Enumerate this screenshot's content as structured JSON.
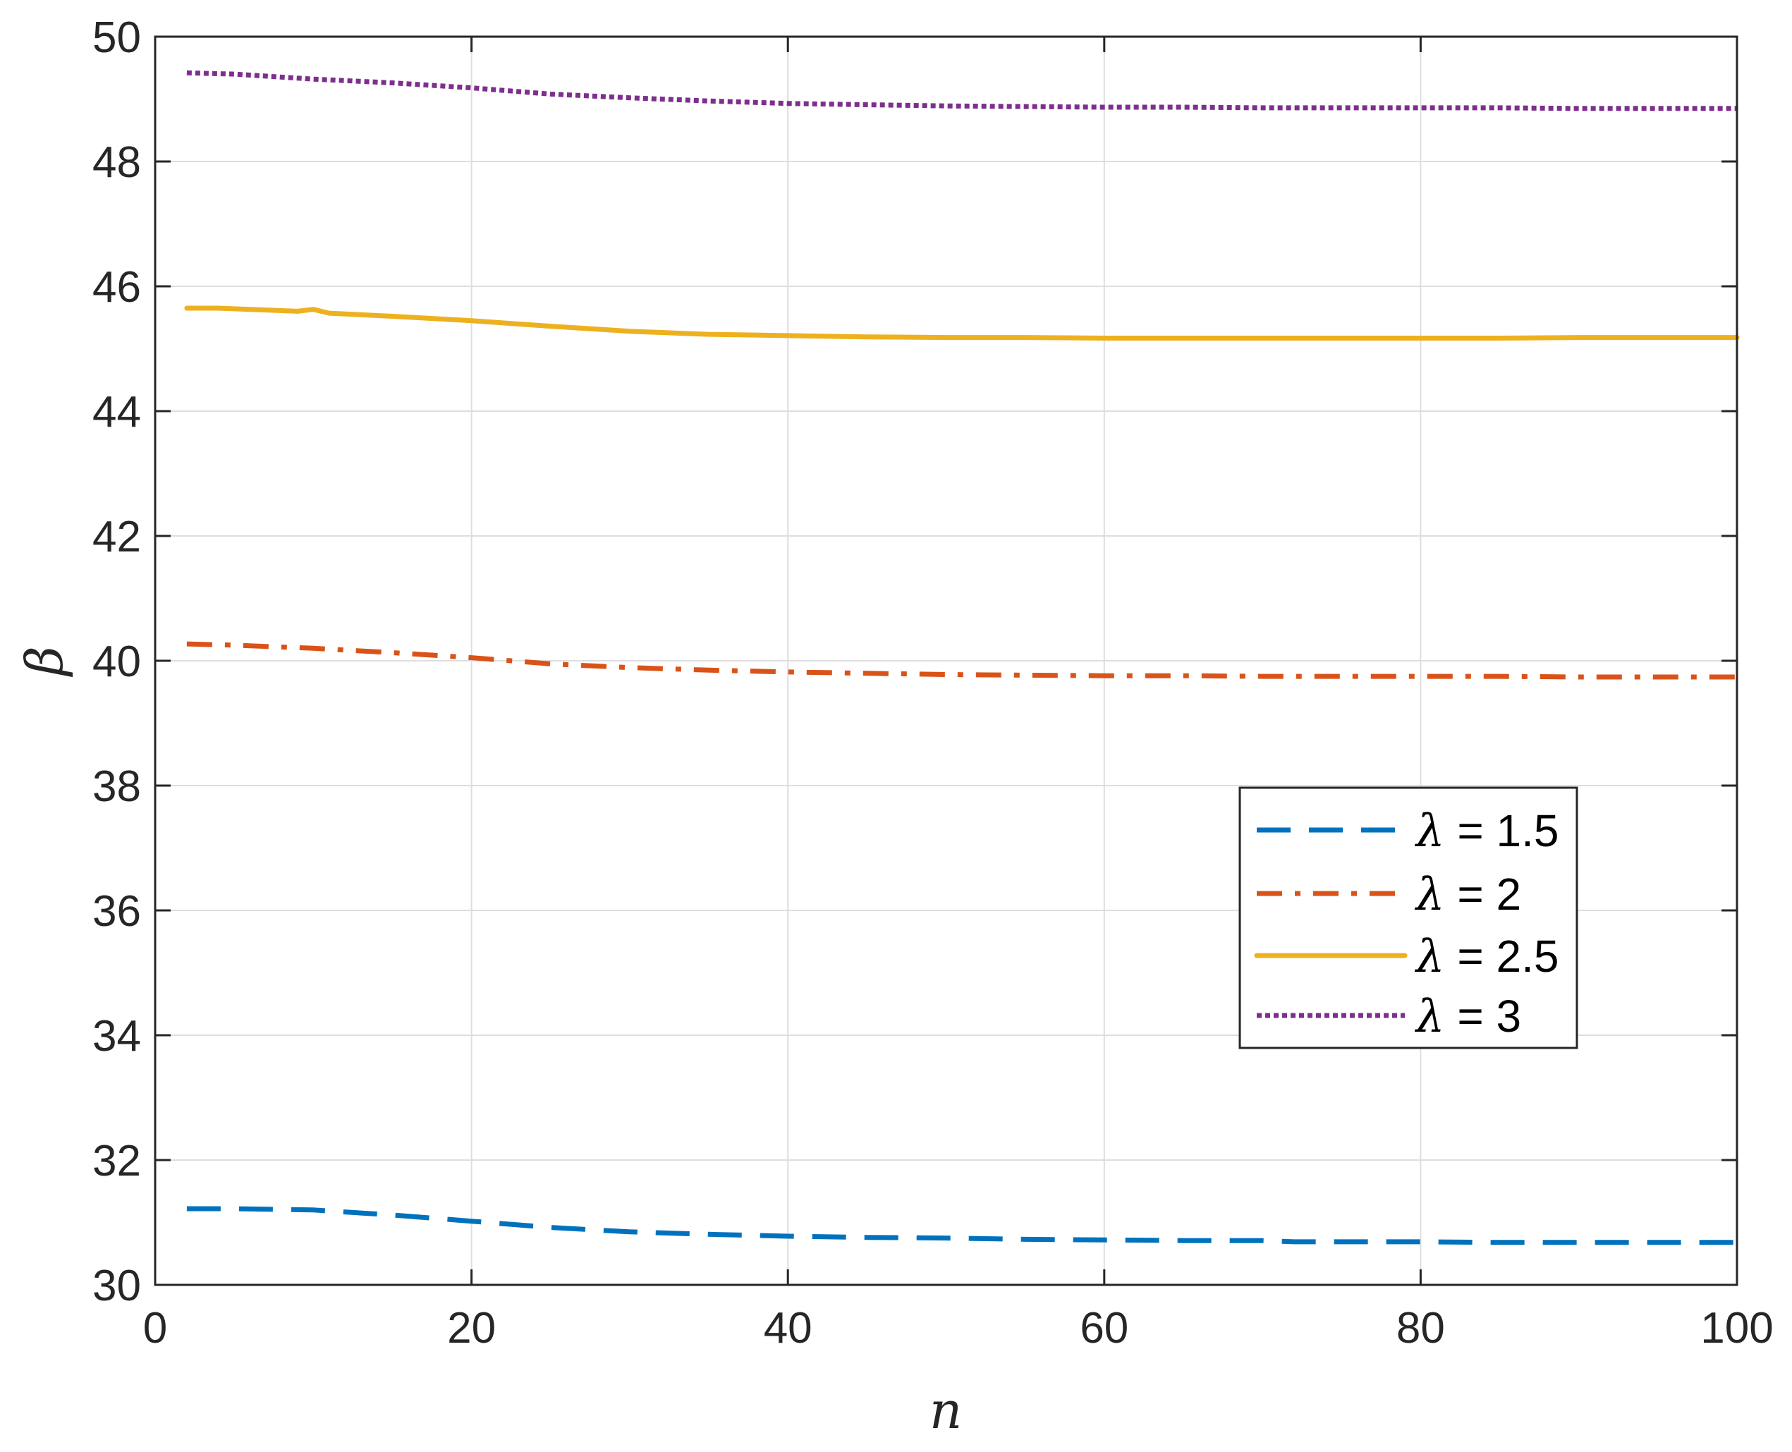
{
  "chart_data": {
    "type": "line",
    "xlabel": "n",
    "ylabel": "β",
    "xlim": [
      0,
      100
    ],
    "ylim": [
      30,
      50
    ],
    "xticks": [
      0,
      20,
      40,
      60,
      80,
      100
    ],
    "yticks": [
      30,
      32,
      34,
      36,
      38,
      40,
      42,
      44,
      46,
      48,
      50
    ],
    "grid": true,
    "legend_position": "right-middle",
    "series": [
      {
        "name": "λ = 1.5",
        "legend_symbol": "λ",
        "legend_value": " = 1.5",
        "color": "#0072BD",
        "style": "dashed",
        "x": [
          2,
          5,
          10,
          15,
          20,
          25,
          30,
          35,
          40,
          45,
          50,
          55,
          60,
          65,
          70,
          72,
          75,
          80,
          85,
          90,
          95,
          100
        ],
        "y": [
          31.22,
          31.22,
          31.2,
          31.12,
          31.02,
          30.92,
          30.85,
          30.81,
          30.78,
          30.76,
          30.75,
          30.73,
          30.72,
          30.71,
          30.71,
          30.69,
          30.69,
          30.69,
          30.68,
          30.68,
          30.68,
          30.68
        ]
      },
      {
        "name": "λ = 2",
        "legend_symbol": "λ",
        "legend_value": " = 2",
        "color": "#D95319",
        "style": "dashdot",
        "x": [
          2,
          5,
          10,
          15,
          20,
          25,
          30,
          35,
          40,
          45,
          50,
          55,
          60,
          65,
          70,
          75,
          80,
          85,
          90,
          95,
          100
        ],
        "y": [
          40.27,
          40.25,
          40.2,
          40.13,
          40.05,
          39.95,
          39.89,
          39.85,
          39.82,
          39.8,
          39.78,
          39.77,
          39.76,
          39.76,
          39.75,
          39.75,
          39.75,
          39.75,
          39.74,
          39.74,
          39.74
        ]
      },
      {
        "name": "λ = 2.5",
        "legend_symbol": "λ",
        "legend_value": " = 2.5",
        "color": "#EDB120",
        "style": "solid",
        "x": [
          2,
          4,
          7,
          9,
          10,
          11,
          15,
          20,
          25,
          30,
          35,
          40,
          45,
          50,
          55,
          60,
          65,
          70,
          75,
          80,
          85,
          90,
          95,
          100
        ],
        "y": [
          45.65,
          45.65,
          45.62,
          45.6,
          45.63,
          45.57,
          45.52,
          45.45,
          45.36,
          45.28,
          45.23,
          45.21,
          45.19,
          45.18,
          45.18,
          45.17,
          45.17,
          45.17,
          45.17,
          45.17,
          45.17,
          45.18,
          45.18,
          45.18
        ]
      },
      {
        "name": "λ = 3",
        "legend_symbol": "λ",
        "legend_value": " = 3",
        "color": "#7E2F8E",
        "style": "dotted",
        "x": [
          2,
          5,
          10,
          15,
          20,
          25,
          30,
          35,
          40,
          45,
          50,
          55,
          60,
          65,
          70,
          75,
          80,
          85,
          90,
          95,
          100
        ],
        "y": [
          49.42,
          49.4,
          49.32,
          49.26,
          49.18,
          49.08,
          49.02,
          48.97,
          48.93,
          48.91,
          48.89,
          48.88,
          48.87,
          48.87,
          48.86,
          48.86,
          48.86,
          48.86,
          48.85,
          48.85,
          48.85
        ]
      }
    ]
  }
}
